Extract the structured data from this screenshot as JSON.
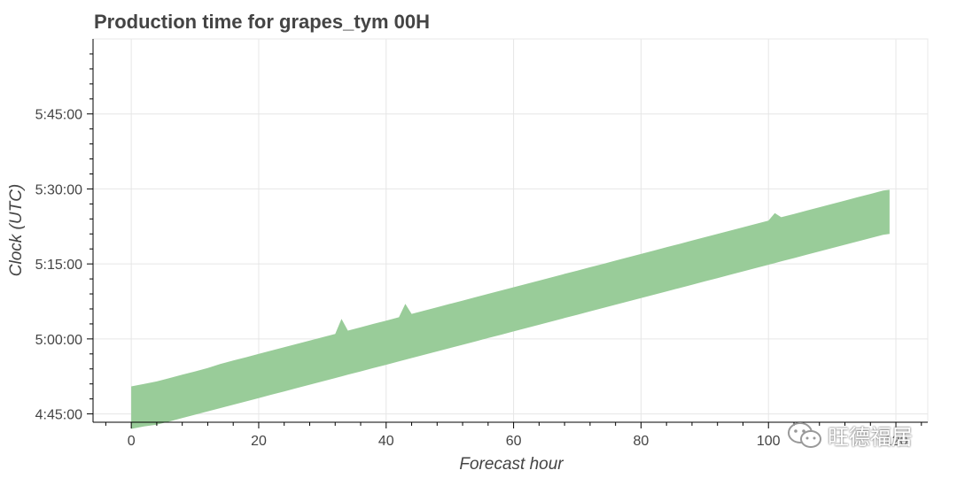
{
  "chart_data": {
    "type": "area",
    "title": "Production time for grapes_tym 00H",
    "xlabel": "Forecast hour",
    "ylabel": "Clock (UTC)",
    "xlim": [
      -6,
      125
    ],
    "ylim_seconds": [
      17000,
      21600
    ],
    "xticks": [
      0,
      20,
      40,
      60,
      80,
      100,
      120
    ],
    "xtick_labels": [
      "0",
      "20",
      "40",
      "60",
      "80",
      "100",
      "120"
    ],
    "yticks_seconds": [
      17100,
      18000,
      18900,
      19800,
      20700
    ],
    "ytick_labels": [
      "4:45:00",
      "5:00:00",
      "5:15:00",
      "5:30:00",
      "5:45:00"
    ],
    "grid": true,
    "fill_color": "#99cc99",
    "series": [
      {
        "x": [
          0,
          2,
          4,
          6,
          8,
          10,
          12,
          14,
          16,
          18,
          20,
          22,
          24,
          26,
          28,
          30,
          32,
          33,
          34,
          36,
          38,
          40,
          42,
          43,
          44,
          46,
          48,
          50,
          52,
          54,
          56,
          58,
          60,
          62,
          64,
          66,
          68,
          70,
          72,
          74,
          76,
          78,
          80,
          82,
          84,
          86,
          88,
          90,
          92,
          94,
          96,
          98,
          100,
          101,
          102,
          104,
          106,
          108,
          110,
          112,
          114,
          116,
          118,
          119
        ],
        "lower_time": [
          "4:42:00",
          "4:42:30",
          "4:42:50",
          "4:43:30",
          "4:44:10",
          "4:44:50",
          "4:45:30",
          "4:46:10",
          "4:46:50",
          "4:47:30",
          "4:48:10",
          "4:48:50",
          "4:49:30",
          "4:50:10",
          "4:50:50",
          "4:51:30",
          "4:52:10",
          "4:52:30",
          "4:52:50",
          "4:53:30",
          "4:54:10",
          "4:54:50",
          "4:55:30",
          "4:55:50",
          "4:56:10",
          "4:56:50",
          "4:57:30",
          "4:58:10",
          "4:58:50",
          "4:59:30",
          "5:00:10",
          "5:00:50",
          "5:01:30",
          "5:02:10",
          "5:02:50",
          "5:03:30",
          "5:04:10",
          "5:04:50",
          "5:05:30",
          "5:06:10",
          "5:06:50",
          "5:07:30",
          "5:08:10",
          "5:08:50",
          "5:09:30",
          "5:10:10",
          "5:10:50",
          "5:11:30",
          "5:12:10",
          "5:12:50",
          "5:13:30",
          "5:14:10",
          "5:14:50",
          "5:15:10",
          "5:15:30",
          "5:16:10",
          "5:16:50",
          "5:17:30",
          "5:18:10",
          "5:18:50",
          "5:19:30",
          "5:20:10",
          "5:20:50",
          "5:21:00"
        ],
        "upper_time": [
          "4:50:30",
          "4:51:00",
          "4:51:30",
          "4:52:10",
          "4:52:50",
          "4:53:30",
          "4:54:10",
          "4:55:00",
          "4:55:40",
          "4:56:20",
          "4:57:00",
          "4:57:40",
          "4:58:20",
          "4:59:00",
          "4:59:40",
          "5:00:20",
          "5:01:00",
          "5:04:00",
          "5:01:40",
          "5:02:20",
          "5:03:00",
          "5:03:40",
          "5:04:20",
          "5:07:00",
          "5:05:00",
          "5:05:40",
          "5:06:20",
          "5:07:00",
          "5:07:40",
          "5:08:20",
          "5:09:00",
          "5:09:40",
          "5:10:20",
          "5:11:00",
          "5:11:40",
          "5:12:20",
          "5:13:00",
          "5:13:40",
          "5:14:20",
          "5:15:00",
          "5:15:40",
          "5:16:20",
          "5:17:00",
          "5:17:40",
          "5:18:20",
          "5:19:00",
          "5:19:40",
          "5:20:20",
          "5:21:00",
          "5:21:40",
          "5:22:20",
          "5:23:00",
          "5:23:40",
          "5:25:10",
          "5:24:20",
          "5:25:00",
          "5:25:40",
          "5:26:20",
          "5:27:00",
          "5:27:40",
          "5:28:20",
          "5:29:00",
          "5:29:40",
          "5:29:50"
        ]
      }
    ]
  },
  "watermark": {
    "text": "旺德福居",
    "icon": "wechat-icon"
  }
}
